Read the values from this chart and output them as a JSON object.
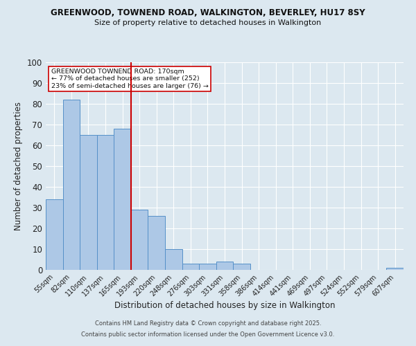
{
  "title1": "GREENWOOD, TOWNEND ROAD, WALKINGTON, BEVERLEY, HU17 8SY",
  "title2": "Size of property relative to detached houses in Walkington",
  "xlabel": "Distribution of detached houses by size in Walkington",
  "ylabel": "Number of detached properties",
  "categories": [
    "55sqm",
    "82sqm",
    "110sqm",
    "137sqm",
    "165sqm",
    "193sqm",
    "220sqm",
    "248sqm",
    "276sqm",
    "303sqm",
    "331sqm",
    "358sqm",
    "386sqm",
    "414sqm",
    "441sqm",
    "469sqm",
    "497sqm",
    "524sqm",
    "552sqm",
    "579sqm",
    "607sqm"
  ],
  "values": [
    34,
    82,
    65,
    65,
    68,
    29,
    26,
    10,
    3,
    3,
    4,
    3,
    0,
    0,
    0,
    0,
    0,
    0,
    0,
    0,
    1
  ],
  "bar_color": "#adc8e6",
  "bar_edge_color": "#5590c8",
  "ref_line_x": 4.5,
  "ref_line_label": "GREENWOOD TOWNEND ROAD: 170sqm",
  "ref_line_color": "#cc0000",
  "annotation_line1": "← 77% of detached houses are smaller (252)",
  "annotation_line2": "23% of semi-detached houses are larger (76) →",
  "annotation_box_color": "#cc0000",
  "ylim": [
    0,
    100
  ],
  "yticks": [
    0,
    10,
    20,
    30,
    40,
    50,
    60,
    70,
    80,
    90,
    100
  ],
  "fig_bg_color": "#dce8f0",
  "plot_bg_color": "#dce8f0",
  "grid_color": "#ffffff",
  "footer1": "Contains HM Land Registry data © Crown copyright and database right 2025.",
  "footer2": "Contains public sector information licensed under the Open Government Licence v3.0."
}
